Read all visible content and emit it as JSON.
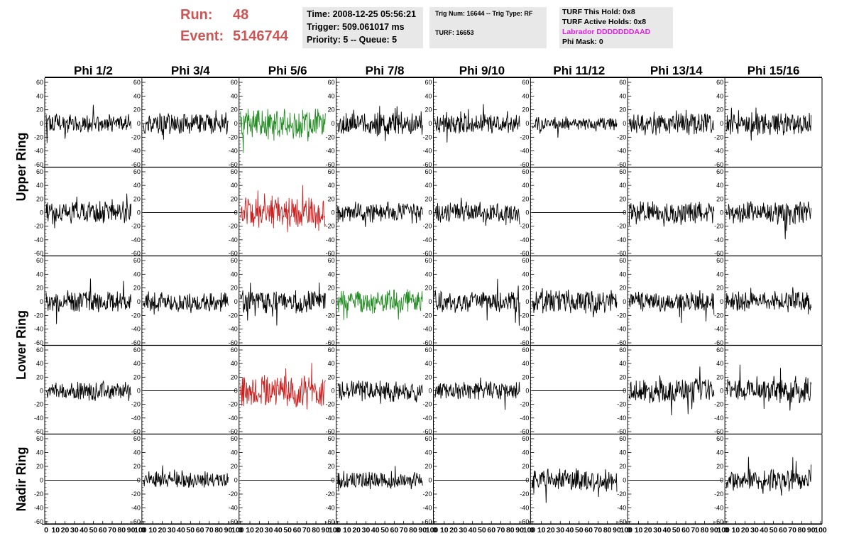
{
  "run_label": "Run:",
  "run_value": "48",
  "event_label": "Event:",
  "event_value": "5146744",
  "time_text": "Time: 2008-12-25 05:56:21",
  "trigger_text": "Trigger: 509.061017 ms",
  "priority_text": "Priority: 5 -- Queue: 5",
  "trig_num_text": "Trig Num: 16644 -- Trig Type: RF",
  "turf_text": "TURF: 16653",
  "turf_this_hold": "TURF This Hold: 0x8",
  "turf_active_holds": "TURF Active Holds: 0x8",
  "labrador_text": "Labrador DDDDDDDAAD",
  "phi_mask_text": "Phi Mask: 0",
  "colors": {
    "run": "#cc5555",
    "labrador": "#e020e0",
    "green": "#228b22",
    "red": "#cc2020",
    "trace": "#000000"
  },
  "chart_data": {
    "type": "line",
    "columns": [
      "Phi 1/2",
      "Phi 3/4",
      "Phi 5/6",
      "Phi 7/8",
      "Phi 9/10",
      "Phi 11/12",
      "Phi 13/14",
      "Phi 15/16"
    ],
    "ring_labels": [
      {
        "label": "Upper Ring",
        "rows": [
          0,
          1
        ]
      },
      {
        "label": "Lower Ring",
        "rows": [
          2,
          3
        ]
      },
      {
        "label": "Nadir Ring",
        "rows": [
          4
        ]
      }
    ],
    "ylim": [
      -60,
      60
    ],
    "xlim": [
      0,
      100
    ],
    "y_ticks": [
      -60,
      -40,
      -20,
      0,
      20,
      40,
      60
    ],
    "x_ticks": [
      0,
      10,
      20,
      30,
      40,
      50,
      60,
      70,
      80,
      90,
      100
    ],
    "samples": 90,
    "grid": false,
    "channels": [
      [
        {
          "color": "black",
          "amp": 12,
          "seed": 11
        },
        {
          "color": "black",
          "amp": 13,
          "seed": 12
        },
        {
          "color": "green",
          "amp": 20,
          "seed": 13
        },
        {
          "color": "black",
          "amp": 14,
          "seed": 14
        },
        {
          "color": "black",
          "amp": 12,
          "seed": 15
        },
        {
          "color": "black",
          "amp": 9,
          "seed": 16
        },
        {
          "color": "black",
          "amp": 14,
          "seed": 17
        },
        {
          "color": "black",
          "amp": 14,
          "seed": 18
        }
      ],
      [
        {
          "color": "black",
          "amp": 14,
          "seed": 21
        },
        {
          "color": "flat",
          "amp": 0,
          "seed": 22
        },
        {
          "color": "red",
          "amp": 20,
          "seed": 23
        },
        {
          "color": "black",
          "amp": 13,
          "seed": 24
        },
        {
          "color": "black",
          "amp": 13,
          "seed": 25
        },
        {
          "color": "flat",
          "amp": 0,
          "seed": 26
        },
        {
          "color": "black",
          "amp": 14,
          "seed": 27
        },
        {
          "color": "black",
          "amp": 15,
          "seed": 28
        }
      ],
      [
        {
          "color": "black",
          "amp": 14,
          "seed": 31
        },
        {
          "color": "black",
          "amp": 12,
          "seed": 32
        },
        {
          "color": "black",
          "amp": 14,
          "seed": 33
        },
        {
          "color": "green",
          "amp": 14,
          "seed": 34
        },
        {
          "color": "black",
          "amp": 13,
          "seed": 35
        },
        {
          "color": "black",
          "amp": 14,
          "seed": 36
        },
        {
          "color": "black",
          "amp": 13,
          "seed": 37
        },
        {
          "color": "black",
          "amp": 12,
          "seed": 38
        }
      ],
      [
        {
          "color": "black",
          "amp": 11,
          "seed": 41
        },
        {
          "color": "flat",
          "amp": 0,
          "seed": 42
        },
        {
          "color": "red",
          "amp": 20,
          "seed": 43
        },
        {
          "color": "black",
          "amp": 13,
          "seed": 44
        },
        {
          "color": "black",
          "amp": 11,
          "seed": 45
        },
        {
          "color": "flat",
          "amp": 0,
          "seed": 46
        },
        {
          "color": "black",
          "amp": 15,
          "seed": 47
        },
        {
          "color": "black",
          "amp": 15,
          "seed": 48
        }
      ],
      [
        {
          "color": "flat",
          "amp": 0,
          "seed": 51
        },
        {
          "color": "black",
          "amp": 10,
          "seed": 52
        },
        {
          "color": "flat",
          "amp": 0,
          "seed": 53
        },
        {
          "color": "black",
          "amp": 11,
          "seed": 54
        },
        {
          "color": "flat",
          "amp": 0,
          "seed": 55
        },
        {
          "color": "black",
          "amp": 14,
          "seed": 56
        },
        {
          "color": "flat",
          "amp": 0,
          "seed": 57
        },
        {
          "color": "black",
          "amp": 13,
          "seed": 58
        }
      ]
    ]
  }
}
